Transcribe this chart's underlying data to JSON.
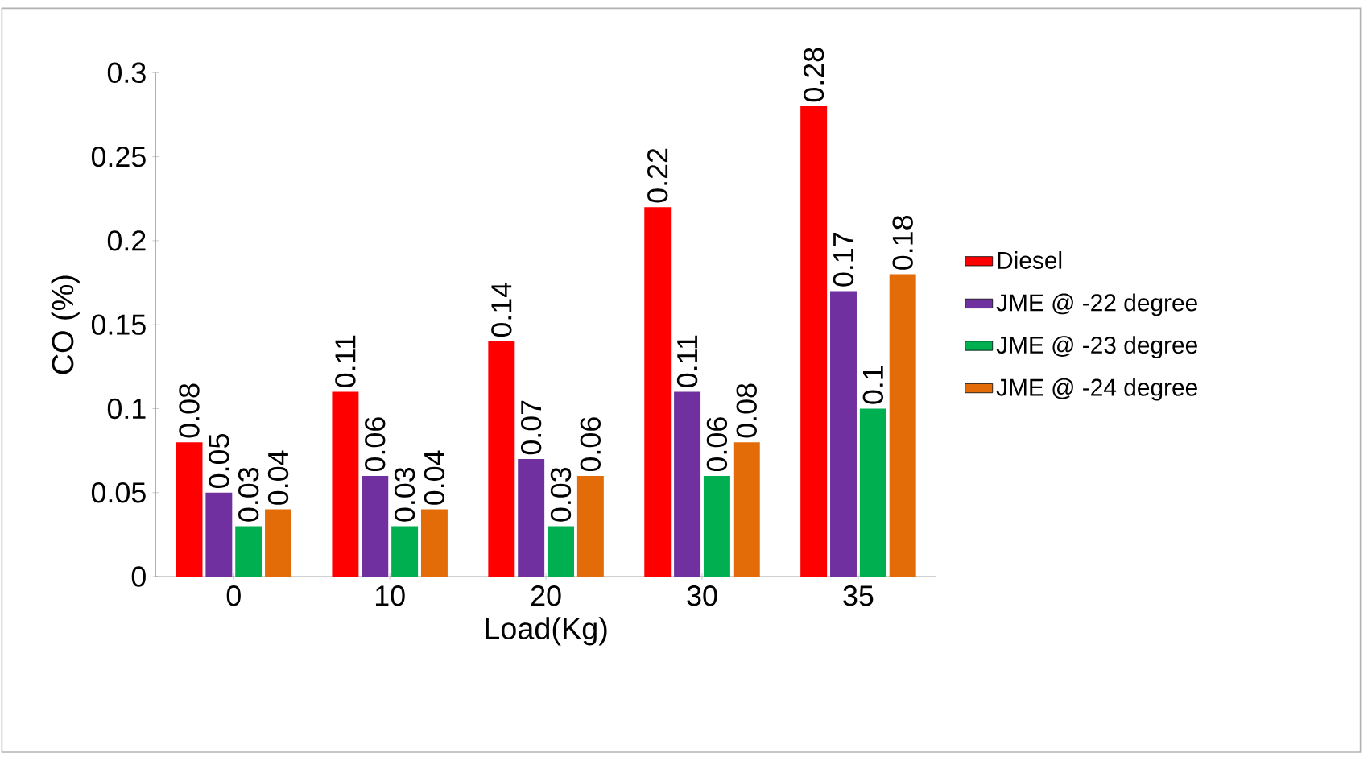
{
  "chart_data": {
    "type": "bar",
    "xlabel": "Load(Kg)",
    "ylabel": "CO (%)",
    "categories": [
      "0",
      "10",
      "20",
      "30",
      "35"
    ],
    "series": [
      {
        "name": "Diesel",
        "color": "#ff0000",
        "values": [
          0.08,
          0.11,
          0.14,
          0.22,
          0.28
        ]
      },
      {
        "name": "JME @ -22 degree",
        "color": "#7030a0",
        "values": [
          0.05,
          0.06,
          0.07,
          0.11,
          0.17
        ]
      },
      {
        "name": "JME @ -23 degree",
        "color": "#00b050",
        "values": [
          0.03,
          0.03,
          0.03,
          0.06,
          0.1
        ]
      },
      {
        "name": "JME @ -24 degree",
        "color": "#e36c09",
        "values": [
          0.04,
          0.04,
          0.06,
          0.08,
          0.18
        ]
      }
    ],
    "ylim": [
      0,
      0.3
    ],
    "yticks": [
      0,
      0.05,
      0.1,
      0.15,
      0.2,
      0.25,
      0.3
    ],
    "data_labels": true,
    "legend": "right",
    "grid": false
  }
}
